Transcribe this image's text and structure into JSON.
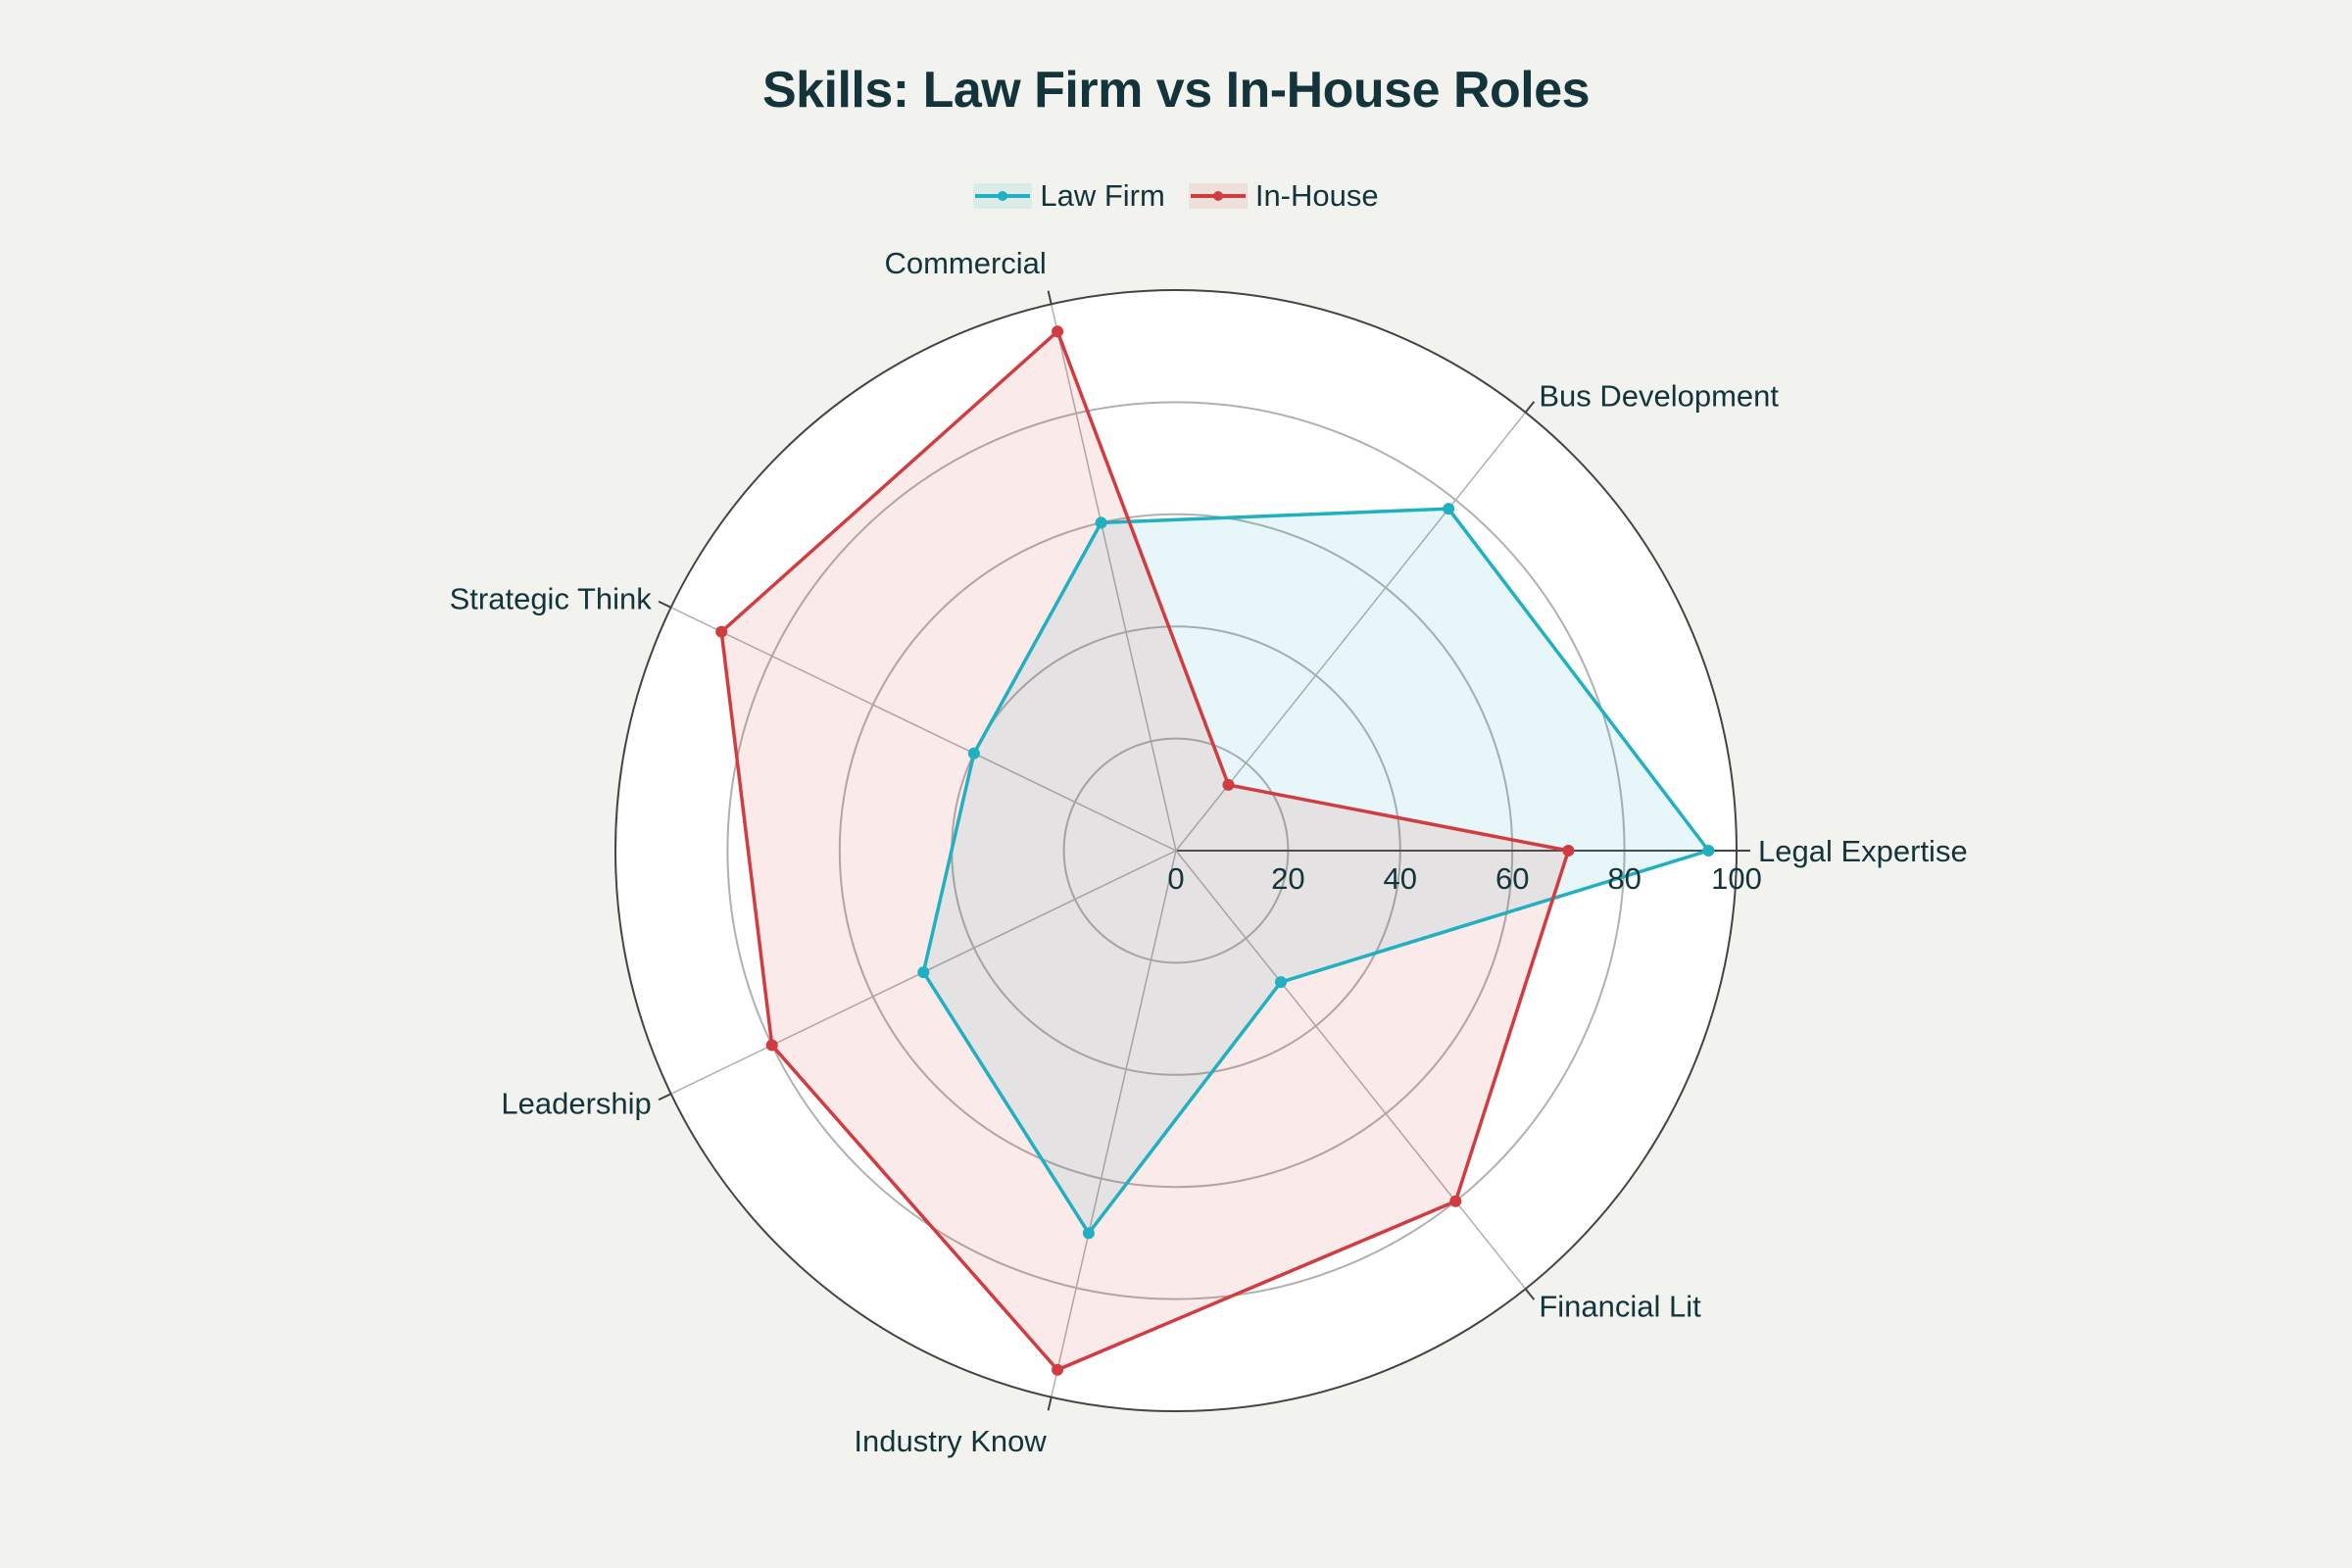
{
  "chart_data": {
    "type": "radar",
    "title": "Skills: Law Firm vs In-House Roles",
    "axes": [
      "Legal Expertise",
      "Bus Development",
      "Commercial",
      "Strategic Think",
      "Leadership",
      "Industry Know",
      "Financial Lit"
    ],
    "rlim": [
      0,
      100
    ],
    "radial_ticks": [
      "0",
      "20",
      "40",
      "60",
      "80",
      "100"
    ],
    "legend_position": "top-center",
    "grid": true,
    "series": [
      {
        "name": "Law Firm",
        "color": "#21afc2",
        "fill": "rgba(33,175,194,0.11)",
        "values": [
          95,
          78,
          60,
          40,
          50,
          70,
          30
        ]
      },
      {
        "name": "In-House",
        "color": "#d13c41",
        "fill": "rgba(209,60,65,0.11)",
        "values": [
          70,
          15,
          95,
          90,
          80,
          95,
          80
        ]
      }
    ]
  }
}
